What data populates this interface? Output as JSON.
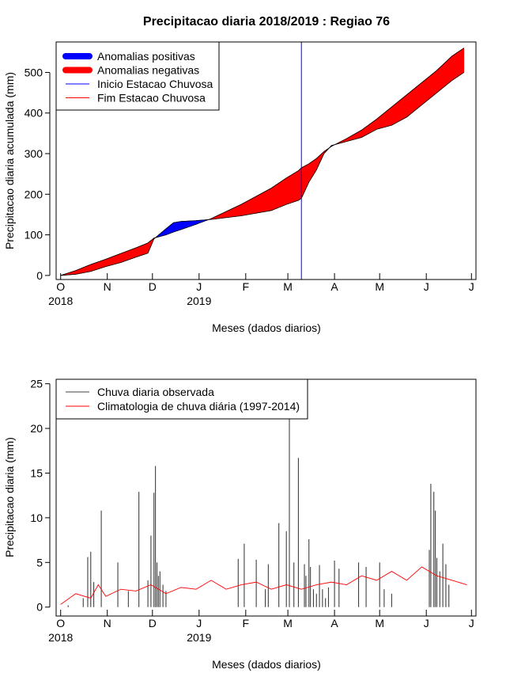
{
  "chart_data": [
    {
      "type": "area",
      "title": "Precipitacao diaria 2018/2019 : Regiao 76",
      "xlabel": "Meses (dados diarios)",
      "ylabel": "Precipitacao diaria acumulada (mm)",
      "ylim": [
        -10,
        575
      ],
      "yticks": [
        0,
        100,
        200,
        300,
        400,
        500
      ],
      "month_ticks": [
        "O",
        "N",
        "D",
        "J",
        "F",
        "M",
        "A",
        "M",
        "J",
        "J"
      ],
      "year_labels": [
        {
          "label": "2018",
          "month_index": 0
        },
        {
          "label": "2019",
          "month_index": 3
        }
      ],
      "x_unit": "days since 1 Oct 2018",
      "xlim": [
        -3,
        276
      ],
      "legend_position": "top-left",
      "legend": [
        {
          "label": "Anomalias positivas",
          "color": "#0000ff",
          "style": "thick"
        },
        {
          "label": "Anomalias negativas",
          "color": "#ff0000",
          "style": "thick"
        },
        {
          "label": "Inicio Estacao Chuvosa",
          "color": "#0000ff",
          "style": "line"
        },
        {
          "label": "Fim Estacao Chuvosa",
          "color": "#ff0000",
          "style": "line"
        }
      ],
      "onset_day": 160,
      "observed": {
        "x": [
          0,
          10,
          20,
          30,
          40,
          50,
          58,
          62,
          70,
          75,
          80,
          90,
          100,
          120,
          140,
          150,
          158,
          160,
          165,
          170,
          175,
          180,
          190,
          200,
          210,
          220,
          230,
          240,
          250,
          260,
          268
        ],
        "y": [
          0,
          3,
          10,
          22,
          32,
          45,
          55,
          90,
          115,
          130,
          133,
          135,
          138,
          147,
          160,
          175,
          185,
          190,
          230,
          260,
          300,
          320,
          330,
          340,
          360,
          370,
          390,
          420,
          450,
          480,
          500
        ]
      },
      "climatology": {
        "x": [
          0,
          10,
          20,
          30,
          40,
          50,
          58,
          62,
          70,
          75,
          80,
          90,
          100,
          120,
          140,
          150,
          158,
          160,
          165,
          170,
          175,
          180,
          190,
          200,
          210,
          220,
          230,
          240,
          250,
          260,
          268
        ],
        "y": [
          0,
          12,
          27,
          40,
          54,
          68,
          80,
          92,
          100,
          107,
          113,
          126,
          140,
          175,
          215,
          240,
          258,
          265,
          275,
          288,
          305,
          318,
          337,
          358,
          385,
          415,
          445,
          475,
          505,
          540,
          560
        ]
      }
    },
    {
      "type": "bar",
      "xlabel": "Meses (dados diarios)",
      "ylabel": "Precipitacao diaria (mm)",
      "ylim": [
        -1,
        25.5
      ],
      "yticks": [
        0,
        5,
        10,
        15,
        20,
        25
      ],
      "month_ticks": [
        "O",
        "N",
        "D",
        "J",
        "F",
        "M",
        "A",
        "M",
        "J",
        "J"
      ],
      "year_labels": [
        {
          "label": "2018",
          "month_index": 0
        },
        {
          "label": "2019",
          "month_index": 3
        }
      ],
      "xlim": [
        -3,
        276
      ],
      "legend_position": "top-left",
      "legend": [
        {
          "label": "Chuva diaria observada",
          "color": "#404040"
        },
        {
          "label": "Climatologia de chuva diária (1997-2014)",
          "color": "#ff0000"
        }
      ],
      "daily": {
        "x": [
          5,
          15,
          18,
          20,
          22,
          27,
          38,
          45,
          52,
          58,
          60,
          62,
          63,
          64,
          65,
          66,
          68,
          70,
          118,
          122,
          130,
          136,
          138,
          145,
          150,
          152,
          155,
          158,
          162,
          163,
          165,
          166,
          168,
          170,
          172,
          174,
          176,
          178,
          182,
          185,
          198,
          203,
          212,
          215,
          220,
          245,
          246,
          248,
          249,
          250,
          252,
          254,
          256,
          258
        ],
        "y": [
          0.2,
          1.0,
          5.6,
          6.2,
          2.8,
          10.8,
          5.0,
          1.8,
          12.9,
          3.0,
          8.0,
          12.8,
          15.8,
          5.0,
          3.5,
          4.0,
          2.5,
          1.8,
          5.4,
          7.1,
          5.3,
          2.0,
          4.8,
          9.4,
          8.5,
          24.8,
          5.0,
          16.7,
          4.8,
          3.5,
          7.6,
          4.5,
          2.0,
          1.5,
          4.7,
          2.0,
          1.0,
          2.2,
          5.2,
          4.3,
          5.0,
          4.5,
          5.0,
          2.0,
          1.5,
          6.4,
          13.8,
          12.9,
          10.8,
          5.5,
          4.0,
          7.1,
          4.8,
          2.5
        ]
      },
      "climatology": {
        "x": [
          0,
          10,
          20,
          25,
          30,
          40,
          50,
          60,
          70,
          80,
          90,
          100,
          110,
          120,
          130,
          140,
          150,
          160,
          170,
          180,
          190,
          200,
          210,
          220,
          230,
          240,
          250,
          260,
          270
        ],
        "y": [
          0.3,
          1.5,
          1.0,
          2.5,
          1.2,
          2.0,
          1.8,
          2.5,
          1.5,
          2.2,
          2.0,
          3.0,
          2.0,
          2.5,
          2.8,
          2.0,
          2.5,
          2.0,
          2.5,
          2.8,
          2.5,
          3.5,
          3.0,
          4.0,
          3.0,
          4.5,
          3.5,
          3.0,
          2.5
        ]
      }
    }
  ]
}
